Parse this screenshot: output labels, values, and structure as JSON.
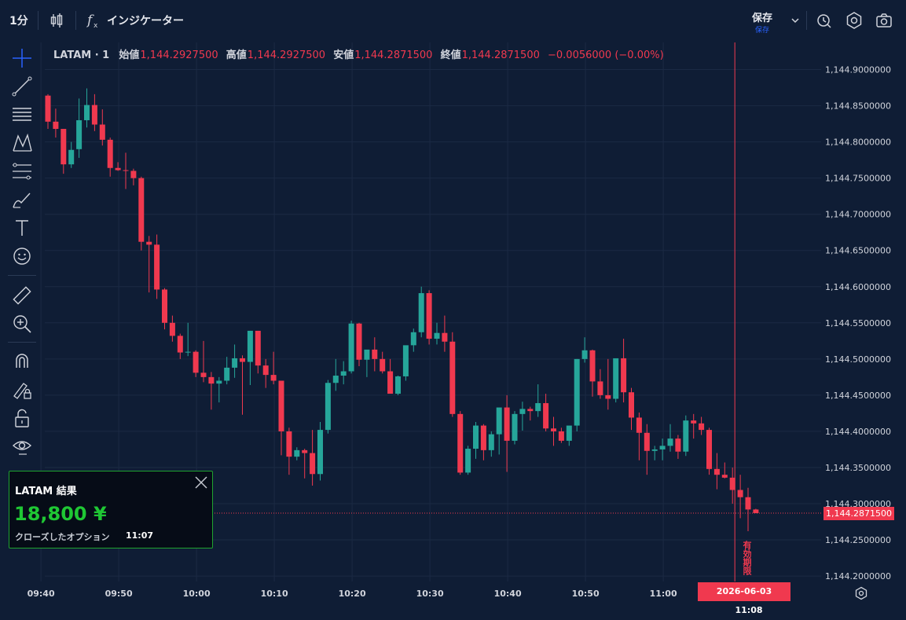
{
  "toolbar": {
    "interval": "1分",
    "indicators_label": "インジケーター",
    "save_label": "保存",
    "save_sublabel": "保存"
  },
  "sidebar_icons": [
    "crosshair-icon",
    "trend-line-icon",
    "horizontal-lines-icon",
    "pattern-icon",
    "fib-icon",
    "brush-icon",
    "text-icon",
    "emoji-icon",
    "ruler-icon",
    "zoom-in-icon",
    "magnet-icon",
    "lock-drawing-icon",
    "unlock-icon",
    "eye-icon",
    "trash-icon"
  ],
  "legend": {
    "symbol": "LATAM · 1",
    "open_label": "始値",
    "open": "1,144.2927500",
    "high_label": "高値",
    "high": "1,144.2927500",
    "low_label": "安値",
    "low": "1,144.2871500",
    "close_label": "終値",
    "close": "1,144.2871500",
    "change": "−0.0056000 (−0.00%)"
  },
  "current_price": "1,144.2871500",
  "expiry": {
    "label": "有効期限",
    "date": "2026-06-03",
    "time": "11:08"
  },
  "result_card": {
    "title": "LATAM 結果",
    "amount": "18,800 ¥",
    "status": "クローズしたオプション",
    "time": "11:07"
  },
  "colors": {
    "up": "#26a69a",
    "down": "#f0394f",
    "background": "#0f1d35",
    "grid": "#1b2a44",
    "win": "#1fc734"
  },
  "chart_data": {
    "type": "candlestick",
    "title": "",
    "xlabel": "",
    "ylabel": "",
    "ylim": [
      1144.1925,
      1144.9375
    ],
    "y_ticks": [
      {
        "v": 1144.9,
        "label": "1,144.9000000"
      },
      {
        "v": 1144.85,
        "label": "1,144.8500000"
      },
      {
        "v": 1144.8,
        "label": "1,144.8000000"
      },
      {
        "v": 1144.75,
        "label": "1,144.7500000"
      },
      {
        "v": 1144.7,
        "label": "1,144.7000000"
      },
      {
        "v": 1144.65,
        "label": "1,144.6500000"
      },
      {
        "v": 1144.6,
        "label": "1,144.6000000"
      },
      {
        "v": 1144.55,
        "label": "1,144.5500000"
      },
      {
        "v": 1144.5,
        "label": "1,144.5000000"
      },
      {
        "v": 1144.45,
        "label": "1,144.4500000"
      },
      {
        "v": 1144.4,
        "label": "1,144.4000000"
      },
      {
        "v": 1144.35,
        "label": "1,144.3500000"
      },
      {
        "v": 1144.3,
        "label": "1,144.3000000"
      },
      {
        "v": 1144.25,
        "label": "1,144.2500000"
      },
      {
        "v": 1144.2,
        "label": "1,144.2000000"
      }
    ],
    "x_ticks": [
      {
        "i": -0.9,
        "label": "09:40"
      },
      {
        "i": 9.1,
        "label": "09:50"
      },
      {
        "i": 19.1,
        "label": "10:00"
      },
      {
        "i": 29.1,
        "label": "10:10"
      },
      {
        "i": 39.1,
        "label": "10:20"
      },
      {
        "i": 49.1,
        "label": "10:30"
      },
      {
        "i": 59.1,
        "label": "10:40"
      },
      {
        "i": 69.1,
        "label": "10:50"
      },
      {
        "i": 79.1,
        "label": "11:00"
      }
    ],
    "expiry_index": 88.3,
    "candles": [
      [
        1144.864,
        1144.866,
        1144.818,
        1144.828
      ],
      [
        1144.828,
        1144.846,
        1144.806,
        1144.818
      ],
      [
        1144.818,
        1144.818,
        1144.756,
        1144.769
      ],
      [
        1144.769,
        1144.8,
        1144.764,
        1144.789
      ],
      [
        1144.79,
        1144.86,
        1144.778,
        1144.83
      ],
      [
        1144.83,
        1144.874,
        1144.82,
        1144.851
      ],
      [
        1144.851,
        1144.866,
        1144.815,
        1144.824
      ],
      [
        1144.824,
        1144.845,
        1144.795,
        1144.803
      ],
      [
        1144.803,
        1144.806,
        1144.752,
        1144.764
      ],
      [
        1144.764,
        1144.772,
        1144.76,
        1144.761
      ],
      [
        1144.761,
        1144.785,
        1144.735,
        1144.76
      ],
      [
        1144.76,
        1144.763,
        1144.74,
        1144.75
      ],
      [
        1144.75,
        1144.752,
        1144.65,
        1144.662
      ],
      [
        1144.662,
        1144.67,
        1144.592,
        1144.658
      ],
      [
        1144.658,
        1144.672,
        1144.583,
        1144.596
      ],
      [
        1144.596,
        1144.598,
        1144.541,
        1144.55
      ],
      [
        1144.55,
        1144.56,
        1144.524,
        1144.532
      ],
      [
        1144.532,
        1144.535,
        1144.5,
        1144.509
      ],
      [
        1144.509,
        1144.55,
        1144.504,
        1144.51
      ],
      [
        1144.51,
        1144.512,
        1144.475,
        1144.481
      ],
      [
        1144.481,
        1144.525,
        1144.468,
        1144.475
      ],
      [
        1144.475,
        1144.482,
        1144.43,
        1144.466
      ],
      [
        1144.466,
        1144.475,
        1144.44,
        1144.47
      ],
      [
        1144.47,
        1144.503,
        1144.465,
        1144.488
      ],
      [
        1144.488,
        1144.52,
        1144.474,
        1144.501
      ],
      [
        1144.501,
        1144.505,
        1144.423,
        1144.496
      ],
      [
        1144.496,
        1144.539,
        1144.464,
        1144.539
      ],
      [
        1144.539,
        1144.539,
        1144.48,
        1144.491
      ],
      [
        1144.491,
        1144.5,
        1144.46,
        1144.478
      ],
      [
        1144.478,
        1144.51,
        1144.465,
        1144.47
      ],
      [
        1144.47,
        1144.47,
        1144.367,
        1144.4
      ],
      [
        1144.4,
        1144.405,
        1144.34,
        1144.365
      ],
      [
        1144.365,
        1144.378,
        1144.36,
        1144.374
      ],
      [
        1144.374,
        1144.376,
        1144.335,
        1144.37
      ],
      [
        1144.37,
        1144.402,
        1144.325,
        1144.341
      ],
      [
        1144.341,
        1144.413,
        1144.332,
        1144.402
      ],
      [
        1144.402,
        1144.471,
        1144.397,
        1144.467
      ],
      [
        1144.467,
        1144.5,
        1144.456,
        1144.477
      ],
      [
        1144.477,
        1144.497,
        1144.465,
        1144.483
      ],
      [
        1144.483,
        1144.553,
        1144.48,
        1144.549
      ],
      [
        1144.549,
        1144.55,
        1144.49,
        1144.499
      ],
      [
        1144.499,
        1144.512,
        1144.475,
        1144.513
      ],
      [
        1144.513,
        1144.53,
        1144.483,
        1144.5
      ],
      [
        1144.5,
        1144.51,
        1144.48,
        1144.483
      ],
      [
        1144.483,
        1144.5,
        1144.453,
        1144.452
      ],
      [
        1144.452,
        1144.477,
        1144.45,
        1144.476
      ],
      [
        1144.476,
        1144.518,
        1144.47,
        1144.519
      ],
      [
        1144.519,
        1144.542,
        1144.51,
        1144.537
      ],
      [
        1144.537,
        1144.6,
        1144.53,
        1144.591
      ],
      [
        1144.591,
        1144.595,
        1144.52,
        1144.528
      ],
      [
        1144.528,
        1144.55,
        1144.52,
        1144.536
      ],
      [
        1144.536,
        1144.56,
        1144.51,
        1144.524
      ],
      [
        1144.524,
        1144.537,
        1144.42,
        1144.424
      ],
      [
        1144.424,
        1144.428,
        1144.34,
        1144.343
      ],
      [
        1144.343,
        1144.38,
        1144.34,
        1144.376
      ],
      [
        1144.376,
        1144.413,
        1144.362,
        1144.408
      ],
      [
        1144.408,
        1144.41,
        1144.36,
        1144.374
      ],
      [
        1144.374,
        1144.4,
        1144.365,
        1144.396
      ],
      [
        1144.396,
        1144.43,
        1144.368,
        1144.433
      ],
      [
        1144.433,
        1144.45,
        1144.344,
        1144.387
      ],
      [
        1144.387,
        1144.428,
        1144.382,
        1144.424
      ],
      [
        1144.424,
        1144.441,
        1144.401,
        1144.431
      ],
      [
        1144.431,
        1144.434,
        1144.415,
        1144.428
      ],
      [
        1144.428,
        1144.465,
        1144.42,
        1144.439
      ],
      [
        1144.439,
        1144.452,
        1144.4,
        1144.404
      ],
      [
        1144.404,
        1144.42,
        1144.38,
        1144.4
      ],
      [
        1144.4,
        1144.405,
        1144.384,
        1144.387
      ],
      [
        1144.387,
        1144.406,
        1144.38,
        1144.408
      ],
      [
        1144.408,
        1144.5,
        1144.4,
        1144.5
      ],
      [
        1144.5,
        1144.53,
        1144.495,
        1144.512
      ],
      [
        1144.512,
        1144.513,
        1144.448,
        1144.469
      ],
      [
        1144.469,
        1144.486,
        1144.445,
        1144.45
      ],
      [
        1144.45,
        1144.5,
        1144.43,
        1144.445
      ],
      [
        1144.445,
        1144.5,
        1144.44,
        1144.501
      ],
      [
        1144.501,
        1144.528,
        1144.44,
        1144.454
      ],
      [
        1144.454,
        1144.46,
        1144.402,
        1144.419
      ],
      [
        1144.419,
        1144.426,
        1144.36,
        1144.398
      ],
      [
        1144.398,
        1144.41,
        1144.34,
        1144.373
      ],
      [
        1144.373,
        1144.38,
        1144.36,
        1144.375
      ],
      [
        1144.375,
        1144.39,
        1144.36,
        1144.38
      ],
      [
        1144.38,
        1144.41,
        1144.372,
        1144.39
      ],
      [
        1144.39,
        1144.395,
        1144.362,
        1144.372
      ],
      [
        1144.372,
        1144.422,
        1144.366,
        1144.415
      ],
      [
        1144.415,
        1144.424,
        1144.39,
        1144.411
      ],
      [
        1144.411,
        1144.42,
        1144.395,
        1144.402
      ],
      [
        1144.402,
        1144.405,
        1144.34,
        1144.348
      ],
      [
        1144.348,
        1144.37,
        1144.32,
        1144.34
      ],
      [
        1144.34,
        1144.357,
        1144.335,
        1144.336
      ],
      [
        1144.336,
        1144.35,
        1144.3,
        1144.319
      ],
      [
        1144.319,
        1144.34,
        1144.28,
        1144.309
      ],
      [
        1144.309,
        1144.322,
        1144.262,
        1144.292
      ],
      [
        1144.292,
        1144.293,
        1144.287,
        1144.287
      ]
    ]
  }
}
